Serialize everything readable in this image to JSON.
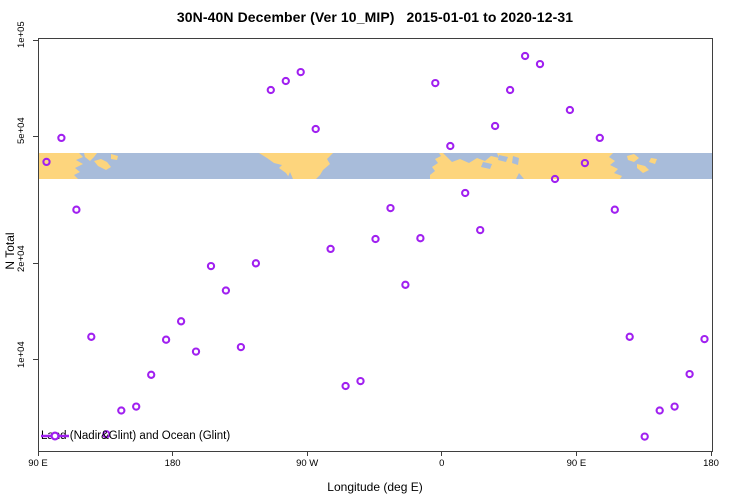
{
  "chart_data": {
    "type": "scatter",
    "title": "30N-40N December (Ver 10_MIP)   2015-01-01 to 2020-12-31",
    "xlabel": "Longitude (deg E)",
    "ylabel": "N Total",
    "x_axis": {
      "lim": [
        90,
        540
      ],
      "ticks": [
        {
          "value": 90,
          "label": "90 E"
        },
        {
          "value": 180,
          "label": "180"
        },
        {
          "value": 270,
          "label": "90 W"
        },
        {
          "value": 360,
          "label": "0"
        },
        {
          "value": 450,
          "label": "90 E"
        },
        {
          "value": 540,
          "label": "180"
        }
      ]
    },
    "y_axis": {
      "scale": "log",
      "lim": [
        5230,
        101500
      ],
      "ticks": [
        {
          "value": 100000,
          "label": "1e+05"
        },
        {
          "value": 50000,
          "label": "5e+04"
        },
        {
          "value": 20000,
          "label": "2e+04"
        },
        {
          "value": 10000,
          "label": "1e+04"
        }
      ]
    },
    "points": [
      [
        95,
        41900
      ],
      [
        105,
        49800
      ],
      [
        115,
        29700
      ],
      [
        125,
        11900
      ],
      [
        135,
        5900
      ],
      [
        145,
        7000
      ],
      [
        155,
        7200
      ],
      [
        165,
        9050
      ],
      [
        175,
        11650
      ],
      [
        185,
        13300
      ],
      [
        195,
        10700
      ],
      [
        205,
        19800
      ],
      [
        215,
        16600
      ],
      [
        225,
        11050
      ],
      [
        235,
        20200
      ],
      [
        245,
        70300
      ],
      [
        255,
        75000
      ],
      [
        265,
        80000
      ],
      [
        275,
        53100
      ],
      [
        285,
        22400
      ],
      [
        295,
        8350
      ],
      [
        305,
        8650
      ],
      [
        315,
        24050
      ],
      [
        325,
        30050
      ],
      [
        335,
        17300
      ],
      [
        345,
        24200
      ],
      [
        355,
        73900
      ],
      [
        365,
        47000
      ],
      [
        375,
        33500
      ],
      [
        385,
        25650
      ],
      [
        395,
        54250
      ],
      [
        405,
        70300
      ],
      [
        415,
        89800
      ],
      [
        425,
        84750
      ],
      [
        435,
        37050
      ],
      [
        445,
        60900
      ],
      [
        455,
        41550
      ],
      [
        465,
        49800
      ],
      [
        475,
        29700
      ],
      [
        485,
        11900
      ],
      [
        495,
        5800
      ],
      [
        505,
        7000
      ],
      [
        515,
        7200
      ],
      [
        525,
        9100
      ],
      [
        535,
        11700
      ]
    ],
    "legend": {
      "label": "Land (Nadir&Glint) and Ocean (Glint)"
    },
    "point_color": "#A020F0",
    "map_band": {
      "description": "coastline strip of the 30N-40N latitude band",
      "ocean_color": "#a8bcda",
      "land_color": "#fdd57d",
      "land_segments": [
        "East Asia",
        "Japan",
        "North America",
        "North Africa & Eurasia",
        "East Asia (wrap)",
        "Japan (wrap)"
      ]
    }
  }
}
